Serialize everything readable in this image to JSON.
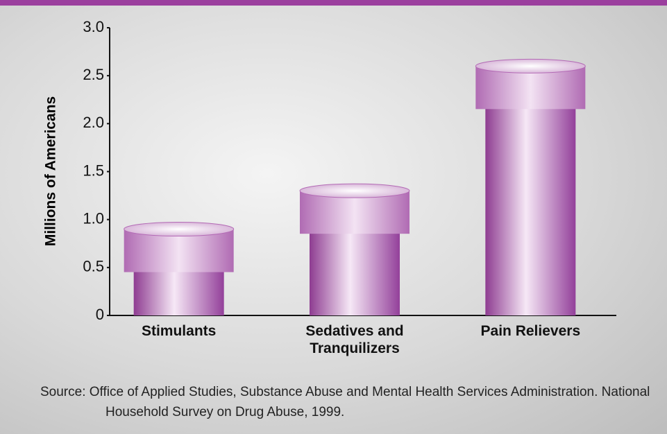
{
  "chart_data": {
    "type": "bar",
    "categories": [
      "Stimulants",
      "Sedatives and Tranquilizers",
      "Pain Relievers"
    ],
    "values": [
      0.9,
      1.3,
      2.6
    ],
    "color": "#b36ab5",
    "y_label": "Millions of Americans",
    "ylim": [
      0,
      3
    ],
    "yticks": [
      0,
      0.5,
      {
        "value": 1,
        "label": "1.0"
      },
      1.5,
      {
        "value": 2,
        "label": "2.0"
      },
      2.5,
      {
        "value": 3,
        "label": "3.0"
      }
    ],
    "source": "Source: Office of Applied Studies, Substance Abuse and Mental Health Services Administration. National Household Survey on Drug Abuse, 1999."
  }
}
